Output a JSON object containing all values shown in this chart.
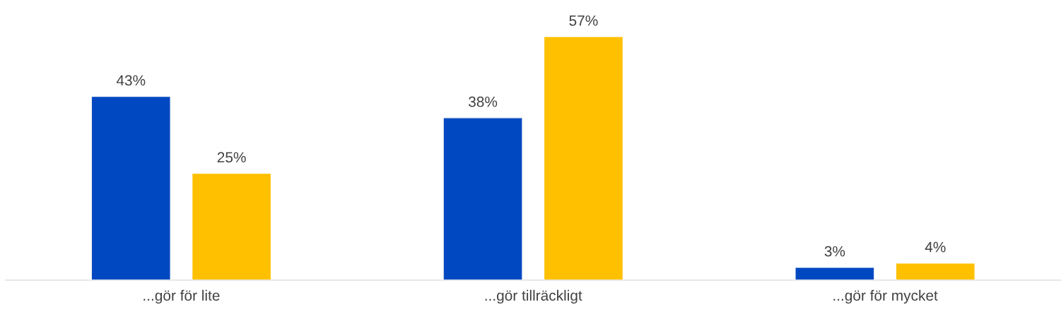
{
  "chart_data": {
    "type": "bar",
    "categories": [
      "...gör för lite",
      "...gör tillräckligt",
      "...gör för mycket"
    ],
    "series": [
      {
        "color": "#0048c1",
        "values": [
          43,
          38,
          3
        ],
        "value_labels": [
          "43%",
          "38%",
          "3%"
        ]
      },
      {
        "color": "#ffc000",
        "values": [
          25,
          57,
          4
        ],
        "value_labels": [
          "25%",
          "57%",
          "4%"
        ]
      }
    ],
    "grid": false,
    "legend": false
  }
}
